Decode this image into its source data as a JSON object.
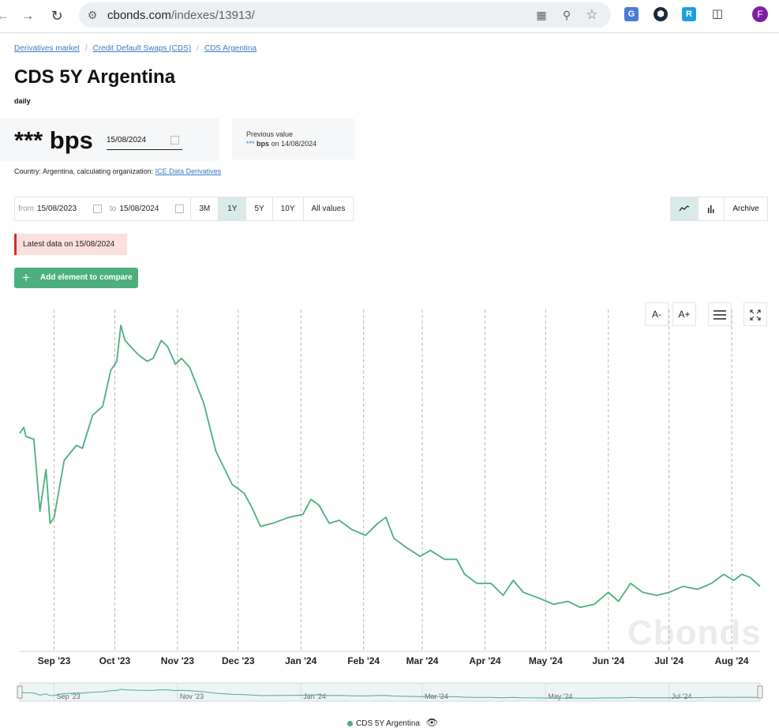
{
  "browser": {
    "url_host": "cbonds.com",
    "url_path": "/indexes/13913/",
    "profile_initial": "F"
  },
  "breadcrumb": [
    "Derivatives market",
    "Credit Default Swaps (CDS)",
    "CDS Argentina"
  ],
  "title": "CDS 5Y Argentina",
  "frequency": "daily",
  "value": {
    "display": "*** bps",
    "date": "15/08/2024"
  },
  "previous": {
    "label": "Previous value",
    "stars": "***",
    "unit": "bps",
    "on_text": "on 14/08/2024"
  },
  "country": {
    "text": "Country: Argentina, calculating organization:",
    "org": "ICE Data Derivatives"
  },
  "filters": {
    "from_label": "from",
    "from_date": "15/08/2023",
    "to_label": "to",
    "to_date": "15/08/2024",
    "periods": [
      "3M",
      "1Y",
      "5Y",
      "10Y",
      "All values"
    ],
    "active_period": "1Y",
    "archive_label": "Archive"
  },
  "latest_notice": "Latest data on 15/08/2024",
  "add_compare_label": "Add element to compare",
  "tools": {
    "font_smaller": "A-",
    "font_larger": "A+"
  },
  "watermark": "Cbonds",
  "legend_label": "CDS 5Y Argentina",
  "colors": {
    "line": "#4caf7d",
    "active_period_bg": "#d9ebe9",
    "notice_border": "#d32f2f",
    "link": "#3a7bc4"
  },
  "chart_data": {
    "type": "line",
    "title": "",
    "xlabel": "",
    "ylabel": "",
    "y_axis_labels_visible": false,
    "x_tick_labels": [
      "Sep '23",
      "Oct '23",
      "Nov '23",
      "Dec '23",
      "Jan '24",
      "Feb '24",
      "Mar '24",
      "Apr '24",
      "May '24",
      "Jun '24",
      "Jul '24",
      "Aug '24"
    ],
    "navigator_tick_labels": [
      "Sep '23",
      "Nov '23",
      "Jan '24",
      "Mar '24",
      "May '24",
      "Jul '24"
    ],
    "grid": "vertical dashed at month starts",
    "series": [
      {
        "name": "CDS 5Y Argentina",
        "points_relative_level": [
          [
            "2023-08-15",
            0.64
          ],
          [
            "2023-08-17",
            0.66
          ],
          [
            "2023-08-18",
            0.63
          ],
          [
            "2023-08-22",
            0.62
          ],
          [
            "2023-08-25",
            0.38
          ],
          [
            "2023-08-28",
            0.52
          ],
          [
            "2023-08-30",
            0.34
          ],
          [
            "2023-09-01",
            0.36
          ],
          [
            "2023-09-06",
            0.55
          ],
          [
            "2023-09-12",
            0.6
          ],
          [
            "2023-09-15",
            0.59
          ],
          [
            "2023-09-20",
            0.7
          ],
          [
            "2023-09-25",
            0.73
          ],
          [
            "2023-09-29",
            0.85
          ],
          [
            "2023-10-02",
            0.88
          ],
          [
            "2023-10-04",
            1.0
          ],
          [
            "2023-10-06",
            0.95
          ],
          [
            "2023-10-10",
            0.92
          ],
          [
            "2023-10-13",
            0.9
          ],
          [
            "2023-10-17",
            0.88
          ],
          [
            "2023-10-20",
            0.89
          ],
          [
            "2023-10-24",
            0.95
          ],
          [
            "2023-10-27",
            0.93
          ],
          [
            "2023-10-31",
            0.87
          ],
          [
            "2023-11-03",
            0.89
          ],
          [
            "2023-11-07",
            0.86
          ],
          [
            "2023-11-14",
            0.74
          ],
          [
            "2023-11-20",
            0.58
          ],
          [
            "2023-11-28",
            0.47
          ],
          [
            "2023-12-04",
            0.44
          ],
          [
            "2023-12-08",
            0.39
          ],
          [
            "2023-12-12",
            0.33
          ],
          [
            "2023-12-18",
            0.34
          ],
          [
            "2023-12-26",
            0.36
          ],
          [
            "2024-01-02",
            0.37
          ],
          [
            "2024-01-06",
            0.42
          ],
          [
            "2024-01-10",
            0.4
          ],
          [
            "2024-01-15",
            0.34
          ],
          [
            "2024-01-20",
            0.35
          ],
          [
            "2024-01-26",
            0.32
          ],
          [
            "2024-02-02",
            0.3
          ],
          [
            "2024-02-08",
            0.34
          ],
          [
            "2024-02-12",
            0.36
          ],
          [
            "2024-02-16",
            0.29
          ],
          [
            "2024-02-22",
            0.26
          ],
          [
            "2024-02-29",
            0.23
          ],
          [
            "2024-03-05",
            0.25
          ],
          [
            "2024-03-12",
            0.22
          ],
          [
            "2024-03-18",
            0.22
          ],
          [
            "2024-03-22",
            0.17
          ],
          [
            "2024-03-28",
            0.14
          ],
          [
            "2024-04-04",
            0.14
          ],
          [
            "2024-04-10",
            0.1
          ],
          [
            "2024-04-15",
            0.15
          ],
          [
            "2024-04-20",
            0.11
          ],
          [
            "2024-04-28",
            0.09
          ],
          [
            "2024-05-05",
            0.07
          ],
          [
            "2024-05-12",
            0.08
          ],
          [
            "2024-05-18",
            0.06
          ],
          [
            "2024-05-25",
            0.07
          ],
          [
            "2024-06-01",
            0.11
          ],
          [
            "2024-06-06",
            0.08
          ],
          [
            "2024-06-12",
            0.14
          ],
          [
            "2024-06-18",
            0.11
          ],
          [
            "2024-06-25",
            0.1
          ],
          [
            "2024-07-01",
            0.11
          ],
          [
            "2024-07-08",
            0.13
          ],
          [
            "2024-07-15",
            0.12
          ],
          [
            "2024-07-22",
            0.14
          ],
          [
            "2024-07-28",
            0.17
          ],
          [
            "2024-08-02",
            0.15
          ],
          [
            "2024-08-06",
            0.17
          ],
          [
            "2024-08-10",
            0.16
          ],
          [
            "2024-08-15",
            0.13
          ]
        ]
      }
    ]
  }
}
